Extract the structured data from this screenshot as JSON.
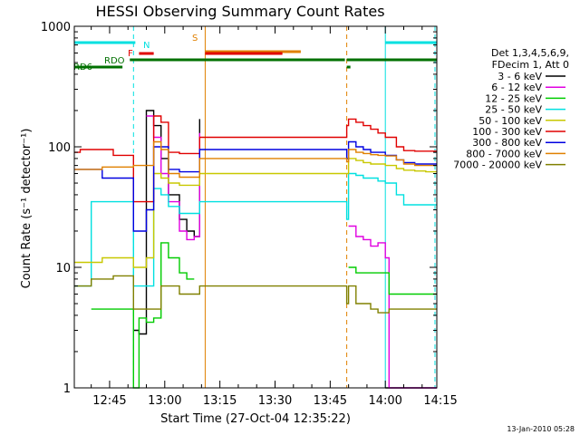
{
  "chart_data": {
    "type": "line",
    "title": "HESSI Observing Summary Count Rates",
    "xlabel": "Start Time (27-Oct-04 12:35:22)",
    "ylabel": "Count Rate (s⁻¹ detector⁻¹)",
    "y_scale": "log",
    "ylim": [
      1,
      1000
    ],
    "xlim_minutes": [
      755.4,
      854
    ],
    "x_ticks": [
      {
        "m": 765,
        "label": "12:45"
      },
      {
        "m": 780,
        "label": "13:00"
      },
      {
        "m": 795,
        "label": "13:15"
      },
      {
        "m": 810,
        "label": "13:30"
      },
      {
        "m": 825,
        "label": "13:45"
      },
      {
        "m": 840,
        "label": "14:00"
      },
      {
        "m": 855,
        "label": "14:15"
      }
    ],
    "y_ticks": [
      {
        "v": 1,
        "label": "1"
      },
      {
        "v": 10,
        "label": "10"
      },
      {
        "v": 100,
        "label": "100"
      },
      {
        "v": 1000,
        "label": "1000"
      }
    ],
    "legend": {
      "header": [
        "Det 1,3,4,5,6,9,",
        "FDecim 1, Att 0"
      ],
      "placement": "right"
    },
    "series": [
      {
        "name": "3 - 6 keV",
        "color": "#000000",
        "x": [
          755.4,
          765,
          770.5,
          771,
          771.5,
          773,
          775,
          777,
          779,
          781,
          784,
          786,
          788,
          789.5,
          829.5,
          830,
          832,
          834,
          836,
          838,
          839.5,
          840,
          840.5,
          841,
          842,
          843,
          845,
          848,
          851,
          854
        ],
        "y": [
          null,
          null,
          null,
          null,
          3.0,
          2.8,
          200,
          150,
          80,
          40,
          25,
          20,
          18,
          170,
          null,
          null,
          null,
          null,
          null,
          null,
          null,
          1,
          1,
          1,
          1,
          1,
          1,
          1,
          1,
          1
        ]
      },
      {
        "name": "6 - 12 keV",
        "color": "#e000e0",
        "x": [
          755.4,
          770.5,
          771.5,
          773,
          775,
          777,
          779,
          781,
          784,
          786,
          788,
          789.5,
          829.5,
          830,
          832,
          834,
          836,
          838,
          840,
          841,
          843,
          845,
          848,
          851,
          854
        ],
        "y": [
          null,
          null,
          null,
          null,
          180,
          120,
          60,
          35,
          20,
          17,
          18,
          130,
          null,
          22,
          18,
          17,
          15,
          16,
          12,
          1,
          1,
          1,
          1,
          1,
          1
        ]
      },
      {
        "name": "12 - 25 keV",
        "color": "#00cc00",
        "x": [
          755.4,
          760,
          763,
          766,
          769,
          770.5,
          771.5,
          773,
          775,
          777,
          779,
          781,
          784,
          786,
          788,
          789.5,
          829.5,
          830,
          832,
          834,
          836,
          838,
          840,
          841,
          843,
          845,
          848,
          851,
          854
        ],
        "y": [
          null,
          4.5,
          4.5,
          4.5,
          4.5,
          4.5,
          1,
          3.8,
          3.5,
          3.8,
          16,
          12,
          9,
          8,
          8,
          null,
          null,
          10,
          9,
          9,
          9,
          9,
          9,
          6,
          6,
          6,
          6,
          6,
          6
        ]
      },
      {
        "name": "25 - 50 keV",
        "color": "#00e0e0",
        "x": [
          755.4,
          757,
          760,
          763,
          766,
          768,
          770.5,
          771.5,
          773,
          775,
          777,
          779,
          781,
          784,
          786,
          788,
          789.5,
          829.5,
          830,
          832,
          834,
          836,
          838,
          840,
          843,
          845,
          848,
          851,
          854
        ],
        "y": [
          7,
          7,
          35,
          35,
          35,
          35,
          35,
          7,
          7,
          7,
          45,
          40,
          32,
          28,
          28,
          28,
          35,
          25,
          60,
          58,
          55,
          55,
          52,
          50,
          40,
          33,
          33,
          33,
          33
        ]
      },
      {
        "name": "50 - 100 keV",
        "color": "#c8c800",
        "x": [
          755.4,
          760,
          761,
          763,
          766,
          768,
          770.5,
          771.5,
          773,
          775,
          777,
          779,
          781,
          784,
          786,
          788,
          789.5,
          829.5,
          830,
          832,
          834,
          836,
          838,
          840,
          843,
          845,
          848,
          851,
          854
        ],
        "y": [
          11,
          11,
          11,
          12,
          12,
          12,
          12,
          10,
          10,
          12,
          60,
          55,
          50,
          48,
          48,
          48,
          60,
          60,
          80,
          77,
          74,
          72,
          72,
          70,
          66,
          64,
          63,
          62,
          62
        ]
      },
      {
        "name": "100 - 300 keV",
        "color": "#e00000",
        "x": [
          755.4,
          757,
          760,
          763,
          766,
          768,
          770.5,
          771.5,
          773,
          775,
          777,
          779,
          781,
          784,
          786,
          788,
          789.5,
          829.5,
          830,
          832,
          834,
          836,
          838,
          840,
          843,
          845,
          848,
          851,
          854
        ],
        "y": [
          90,
          95,
          95,
          95,
          85,
          85,
          85,
          35,
          35,
          35,
          180,
          160,
          90,
          88,
          88,
          88,
          120,
          150,
          170,
          160,
          150,
          140,
          130,
          120,
          100,
          93,
          92,
          92,
          92
        ]
      },
      {
        "name": "300 - 800 keV",
        "color": "#0000e0",
        "x": [
          755.4,
          757,
          760,
          763,
          766,
          768,
          770.5,
          771.5,
          773,
          775,
          777,
          779,
          781,
          784,
          786,
          788,
          789.5,
          829.5,
          830,
          832,
          834,
          836,
          838,
          840,
          843,
          845,
          848,
          851,
          854
        ],
        "y": [
          65,
          65,
          65,
          55,
          55,
          55,
          55,
          20,
          20,
          30,
          100,
          100,
          65,
          62,
          62,
          62,
          95,
          80,
          110,
          100,
          95,
          90,
          90,
          85,
          78,
          74,
          72,
          72,
          72
        ]
      },
      {
        "name": "800 - 7000 keV",
        "color": "#e08000",
        "x": [
          755.4,
          757,
          760,
          763,
          766,
          768,
          770.5,
          771.5,
          773,
          775,
          777,
          779,
          781,
          784,
          786,
          788,
          789.5,
          829.5,
          830,
          832,
          834,
          836,
          838,
          840,
          843,
          845,
          848,
          851,
          854
        ],
        "y": [
          65,
          65,
          65,
          68,
          68,
          68,
          68,
          70,
          70,
          70,
          110,
          95,
          60,
          56,
          56,
          56,
          80,
          75,
          95,
          90,
          88,
          86,
          85,
          84,
          78,
          72,
          70,
          70,
          70
        ]
      },
      {
        "name": "7000 - 20000 keV",
        "color": "#808000",
        "x": [
          755.4,
          757,
          760,
          763,
          766,
          768,
          770.5,
          771.5,
          773,
          775,
          777,
          779,
          781,
          784,
          786,
          788,
          789.5,
          829.5,
          830,
          832,
          834,
          836,
          838,
          840,
          841,
          843,
          845,
          848,
          851,
          854
        ],
        "y": [
          7,
          7,
          8,
          8,
          8.5,
          8.5,
          8.5,
          4.5,
          4.5,
          4.5,
          4.5,
          7,
          7,
          6,
          6,
          6,
          7,
          5,
          7,
          5,
          5,
          4.5,
          4.2,
          4.2,
          4.5,
          4.5,
          4.5,
          4.5,
          4.5,
          4.5
        ]
      }
    ],
    "state_bars": [
      {
        "label": "N",
        "color": "#00e0e0",
        "segments": [
          [
            755.4,
            772
          ],
          [
            840,
            854
          ]
        ],
        "row": 0
      },
      {
        "label": "S",
        "color": "#e08000",
        "segments": [
          [
            791,
            817
          ]
        ],
        "row": 1
      },
      {
        "label": "F",
        "color": "#e00000",
        "segments": [
          [
            773,
            777
          ],
          [
            791,
            812
          ]
        ],
        "row": 2
      },
      {
        "label": "RDO",
        "color": "#007000",
        "segments": [
          [
            770.5,
            829
          ],
          [
            829.5,
            854
          ]
        ],
        "row": 3
      },
      {
        "label": "RD6",
        "color": "#007000",
        "segments": [
          [
            755.4,
            768.5
          ],
          [
            829.5,
            830.5
          ]
        ],
        "row": 4
      }
    ],
    "vertical_markers": [
      {
        "x": 755.4,
        "color": "#00e0e0",
        "style": "solid"
      },
      {
        "x": 771.5,
        "color": "#00e0e0",
        "style": "dashed"
      },
      {
        "x": 791,
        "color": "#e08000",
        "style": "solid"
      },
      {
        "x": 829.5,
        "color": "#e08000",
        "style": "dashed"
      },
      {
        "x": 840,
        "color": "#00e0e0",
        "style": "solid"
      },
      {
        "x": 853.5,
        "color": "#00e0e0",
        "style": "dashed"
      }
    ]
  },
  "footer": {
    "timestamp": "13-Jan-2010 05:28"
  }
}
